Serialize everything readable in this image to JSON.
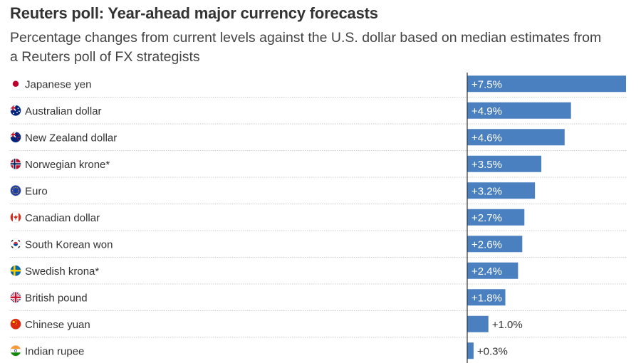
{
  "header": {
    "title": "Reuters poll: Year-ahead major currency forecasts",
    "subtitle": "Percentage changes from current levels against the U.S. dollar based on median estimates from a Reuters poll of FX strategists"
  },
  "colors": {
    "bar": "#4a80bf",
    "text": "#333333"
  },
  "chart_data": {
    "type": "bar",
    "orientation": "horizontal",
    "title": "Reuters poll: Year-ahead major currency forecasts",
    "subtitle": "Percentage changes from current levels against the U.S. dollar based on median estimates from a Reuters poll of FX strategists",
    "unit": "%",
    "xlim": [
      0,
      7.5
    ],
    "categories": [
      "Japanese yen",
      "Australian dollar",
      "New Zealand dollar",
      "Norwegian krone*",
      "Euro",
      "Canadian dollar",
      "South Korean won",
      "Swedish krona*",
      "British pound",
      "Chinese yuan",
      "Indian rupee"
    ],
    "values": [
      7.5,
      4.9,
      4.6,
      3.5,
      3.2,
      2.7,
      2.6,
      2.4,
      1.8,
      1.0,
      0.3
    ],
    "value_labels": [
      "+7.5%",
      "+4.9%",
      "+4.6%",
      "+3.5%",
      "+3.2%",
      "+2.7%",
      "+2.6%",
      "+2.4%",
      "+1.8%",
      "+1.0%",
      "+0.3%"
    ],
    "flags": [
      "japan-flag-icon",
      "australia-flag-icon",
      "new-zealand-flag-icon",
      "norway-flag-icon",
      "eu-flag-icon",
      "canada-flag-icon",
      "south-korea-flag-icon",
      "sweden-flag-icon",
      "uk-flag-icon",
      "china-flag-icon",
      "india-flag-icon"
    ]
  }
}
